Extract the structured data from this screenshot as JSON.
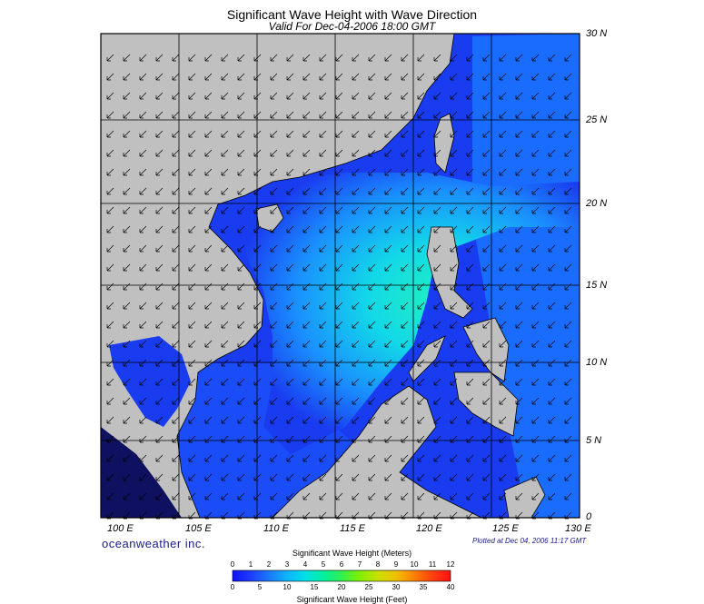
{
  "title": "Significant Wave Height with Wave Direction",
  "subtitle": "Valid For Dec-04-2006 18:00 GMT",
  "brand": "oceanweather inc.",
  "plotted": "Plotted at Dec 04, 2006 11:17 GMT",
  "lat_labels": [
    "30 N",
    "25 N",
    "20 N",
    "15 N",
    "10 N",
    "5 N",
    "0"
  ],
  "lon_labels": [
    "100 E",
    "105 E",
    "110 E",
    "115 E",
    "120 E",
    "125 E",
    "130 E"
  ],
  "colorbar": {
    "meters_title": "Significant Wave Height (Meters)",
    "feet_title": "Significant Wave Height (Feet)",
    "meters_ticks": [
      "0",
      "1",
      "2",
      "3",
      "4",
      "5",
      "6",
      "7",
      "8",
      "9",
      "10",
      "11",
      "12"
    ],
    "feet_ticks": [
      "0",
      "5",
      "10",
      "15",
      "20",
      "25",
      "30",
      "35",
      "40"
    ],
    "colors": [
      "#1010ff",
      "#1e3cff",
      "#1a78ff",
      "#0fb4ff",
      "#00e0e8",
      "#00f0a0",
      "#30f050",
      "#80f000",
      "#c8e000",
      "#f0c000",
      "#ff8000",
      "#ff4010",
      "#ff1010"
    ]
  },
  "colors": {
    "land": "#c0c0c0",
    "sea_deep_blue": "#1a3cf0",
    "sea_mid": "#1a8cff",
    "sea_high": "#20f0c0",
    "grid": "#000000",
    "arrows": "#000000"
  }
}
